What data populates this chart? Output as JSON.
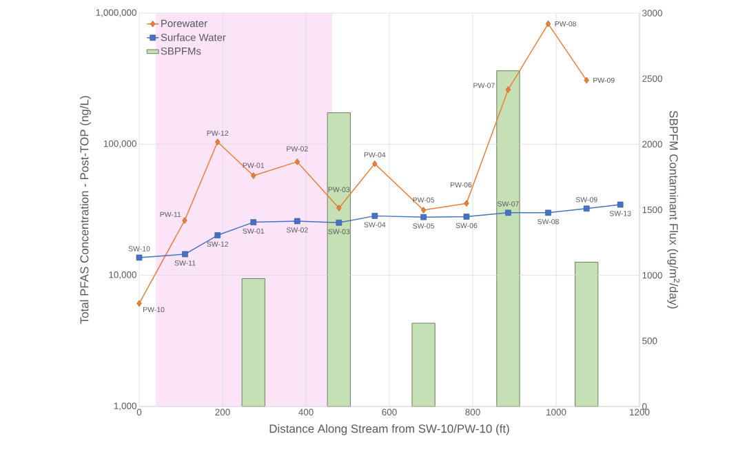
{
  "chart_data": {
    "type": "line",
    "xlabel": "Distance Along Stream from SW-10/PW-10 (ft)",
    "ylabel": "Total PFAS Concentration - Post-TOP (ng/L)",
    "y2label": "SBPFM Contaminant Flux (ug/m$^{2}$/day)",
    "log": "y",
    "grid": true,
    "legend": "top left",
    "xlim": [
      0,
      1200
    ],
    "xticks": [
      0,
      200,
      400,
      600,
      800,
      1000,
      1200
    ],
    "ylim": [
      1000,
      1000000
    ],
    "yticks": [
      {
        "value": 1000,
        "label": "1,000"
      },
      {
        "value": 10000,
        "label": "10,000"
      },
      {
        "value": 100000,
        "label": "100,000"
      },
      {
        "value": 1000000,
        "label": "1,000,000"
      }
    ],
    "y2lim": [
      0,
      3000
    ],
    "y2ticks": [
      0,
      500,
      1000,
      1500,
      2000,
      2500,
      3000
    ],
    "bands": [
      {
        "axis": "x",
        "from": 40,
        "to": 463,
        "color": "#fbe3f8"
      }
    ],
    "series": [
      {
        "name": "Porewater",
        "color": "#ed7d31",
        "marker": "diamond",
        "x": [
          0,
          109,
          188,
          274,
          379,
          479,
          565,
          682,
          785,
          885,
          981,
          1073
        ],
        "values": [
          6100,
          26200,
          104000,
          57600,
          73400,
          32600,
          71000,
          31400,
          35400,
          261000,
          828000,
          307000
        ]
      },
      {
        "name": "Surface Water",
        "color": "#4472c4",
        "marker": "square",
        "x": [
          0,
          110,
          188,
          274,
          379,
          479,
          565,
          682,
          785,
          885,
          981,
          1073,
          1154
        ],
        "values": [
          13650,
          14500,
          20200,
          25400,
          25900,
          25200,
          28400,
          27800,
          28000,
          30000,
          30000,
          32300,
          34600
        ]
      },
      {
        "name": "SBPFMs",
        "type": "bar",
        "axis": "y2",
        "color": "#c5e0b4",
        "x": [
          274,
          479,
          682,
          885,
          1073
        ],
        "values": [
          975,
          2240,
          635,
          2560,
          1100
        ]
      }
    ],
    "annotations": [
      {
        "text": "PW-10",
        "x": 0,
        "y": 6100
      },
      {
        "text": "PW-11",
        "x": 109,
        "y": 26200
      },
      {
        "text": "PW-12",
        "x": 188,
        "y": 104000
      },
      {
        "text": "PW-01",
        "x": 274,
        "y": 57600
      },
      {
        "text": "PW-02",
        "x": 379,
        "y": 73400
      },
      {
        "text": "PW-03",
        "x": 479,
        "y": 32600
      },
      {
        "text": "PW-04",
        "x": 565,
        "y": 71000
      },
      {
        "text": "PW-05",
        "x": 682,
        "y": 31400
      },
      {
        "text": "PW-06",
        "x": 785,
        "y": 35400
      },
      {
        "text": "PW-07",
        "x": 885,
        "y": 261000
      },
      {
        "text": "PW-08",
        "x": 981,
        "y": 828000
      },
      {
        "text": "PW-09",
        "x": 1073,
        "y": 307000
      },
      {
        "text": "SW-10",
        "x": 0,
        "y": 13650
      },
      {
        "text": "SW-11",
        "x": 110,
        "y": 14500
      },
      {
        "text": "SW-12",
        "x": 188,
        "y": 20200
      },
      {
        "text": "SW-01",
        "x": 274,
        "y": 25400
      },
      {
        "text": "SW-02",
        "x": 379,
        "y": 25900
      },
      {
        "text": "SW-03",
        "x": 479,
        "y": 25200
      },
      {
        "text": "SW-04",
        "x": 565,
        "y": 28400
      },
      {
        "text": "SW-05",
        "x": 682,
        "y": 27800
      },
      {
        "text": "SW-06",
        "x": 785,
        "y": 28000
      },
      {
        "text": "SW-07",
        "x": 885,
        "y": 30000
      },
      {
        "text": "SW-08",
        "x": 981,
        "y": 30000
      },
      {
        "text": "SW-09",
        "x": 1073,
        "y": 32300
      },
      {
        "text": "SW-13",
        "x": 1154,
        "y": 34600
      }
    ]
  }
}
